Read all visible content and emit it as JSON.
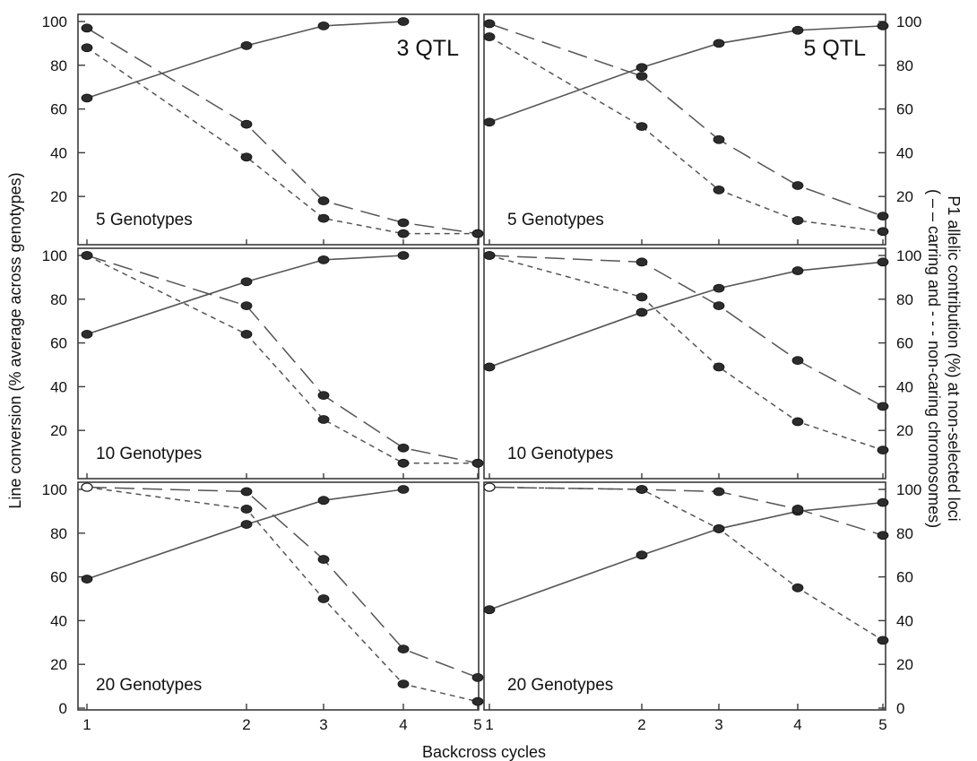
{
  "figure": {
    "xlabel": "Backcross cycles",
    "ylabel_left": "Line conversion (% average across genotypes)",
    "ylabel_right_line1": "P1 allelic contribution (%) at non-selected loci",
    "ylabel_right_line2": "( – – carring and - - - non-caring chromosomes)",
    "columns": [
      "3 QTL",
      "5 QTL"
    ],
    "rows": [
      "5 Genotypes",
      "10 Genotypes",
      "20 Genotypes"
    ]
  },
  "chart_data": [
    {
      "type": "line",
      "label": "5 Genotypes",
      "qtl": "3 QTL",
      "x": [
        1,
        2,
        3,
        4,
        5
      ],
      "xticks": [
        "1",
        "2",
        "3",
        "4",
        "5"
      ],
      "ylim": [
        0,
        100
      ],
      "yticks": [
        "20",
        "40",
        "60",
        "80",
        "100"
      ],
      "series": [
        {
          "style": "solid",
          "values": [
            65,
            89,
            98,
            100,
            null
          ]
        },
        {
          "style": "long-dash",
          "values": [
            97,
            53,
            18,
            8,
            3
          ]
        },
        {
          "style": "short-dash",
          "values": [
            88,
            38,
            10,
            3,
            3
          ]
        }
      ]
    },
    {
      "type": "line",
      "label": "5 Genotypes",
      "qtl": "5 QTL",
      "x": [
        1,
        2,
        3,
        4,
        5
      ],
      "xticks": [
        "1",
        "2",
        "3",
        "4",
        "5"
      ],
      "ylim": [
        0,
        100
      ],
      "yticks": [
        "20",
        "40",
        "60",
        "80",
        "100"
      ],
      "series": [
        {
          "style": "solid",
          "values": [
            54,
            79,
            90,
            96,
            98
          ]
        },
        {
          "style": "long-dash",
          "values": [
            99,
            75,
            46,
            25,
            11
          ]
        },
        {
          "style": "short-dash",
          "values": [
            93,
            52,
            23,
            9,
            4
          ]
        }
      ]
    },
    {
      "type": "line",
      "label": "10 Genotypes",
      "qtl": "3 QTL",
      "x": [
        1,
        2,
        3,
        4,
        5
      ],
      "xticks": [
        "1",
        "2",
        "3",
        "4",
        "5"
      ],
      "ylim": [
        0,
        100
      ],
      "yticks": [
        "20",
        "40",
        "60",
        "80",
        "100"
      ],
      "series": [
        {
          "style": "solid",
          "values": [
            64,
            88,
            98,
            100,
            null
          ]
        },
        {
          "style": "long-dash",
          "values": [
            100,
            77,
            36,
            12,
            5
          ]
        },
        {
          "style": "short-dash",
          "values": [
            100,
            64,
            25,
            5,
            5
          ]
        }
      ]
    },
    {
      "type": "line",
      "label": "10 Genotypes",
      "qtl": "5 QTL",
      "x": [
        1,
        2,
        3,
        4,
        5
      ],
      "xticks": [
        "1",
        "2",
        "3",
        "4",
        "5"
      ],
      "ylim": [
        0,
        100
      ],
      "yticks": [
        "20",
        "40",
        "60",
        "80",
        "100"
      ],
      "series": [
        {
          "style": "solid",
          "values": [
            49,
            74,
            85,
            93,
            97
          ]
        },
        {
          "style": "long-dash",
          "values": [
            100,
            97,
            77,
            52,
            31
          ]
        },
        {
          "style": "short-dash",
          "values": [
            100,
            81,
            49,
            24,
            11
          ]
        }
      ]
    },
    {
      "type": "line",
      "label": "20 Genotypes",
      "qtl": "3 QTL",
      "x": [
        1,
        2,
        3,
        4,
        5
      ],
      "xticks": [
        "1",
        "2",
        "3",
        "4",
        "5"
      ],
      "ylim": [
        0,
        100
      ],
      "yticks": [
        "0",
        "20",
        "40",
        "60",
        "80",
        "100"
      ],
      "series": [
        {
          "style": "solid",
          "values": [
            59,
            84,
            95,
            100,
            null
          ]
        },
        {
          "style": "long-dash",
          "values": [
            101,
            99,
            68,
            27,
            14
          ]
        },
        {
          "style": "short-dash",
          "values": [
            101,
            91,
            50,
            11,
            3
          ]
        }
      ]
    },
    {
      "type": "line",
      "label": "20 Genotypes",
      "qtl": "5 QTL",
      "x": [
        1,
        2,
        3,
        4,
        5
      ],
      "xticks": [
        "1",
        "2",
        "3",
        "4",
        "5"
      ],
      "ylim": [
        0,
        100
      ],
      "yticks": [
        "0",
        "20",
        "40",
        "60",
        "80",
        "100"
      ],
      "series": [
        {
          "style": "solid",
          "values": [
            45,
            70,
            82,
            90,
            94
          ]
        },
        {
          "style": "long-dash",
          "values": [
            101,
            100,
            99,
            91,
            79
          ]
        },
        {
          "style": "short-dash",
          "values": [
            101,
            100,
            82,
            55,
            31
          ]
        }
      ]
    }
  ]
}
